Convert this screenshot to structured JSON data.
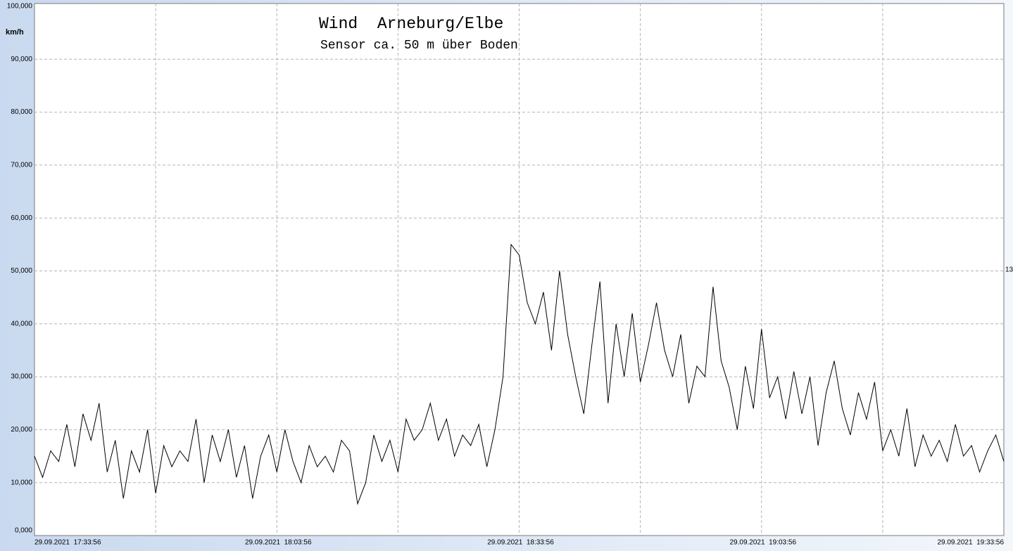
{
  "chart_data": {
    "type": "line",
    "title": "Wind  Arneburg/Elbe",
    "subtitle": "Sensor ca. 50 m über Boden",
    "ylabel": "km/h",
    "annotations": [
      "13"
    ],
    "color": "#000000",
    "grid": true,
    "ylim": [
      0,
      100
    ],
    "yticks": [
      {
        "value": 0,
        "label": "0,000"
      },
      {
        "value": 10,
        "label": "10,000"
      },
      {
        "value": 20,
        "label": "20,000"
      },
      {
        "value": 30,
        "label": "30,000"
      },
      {
        "value": 40,
        "label": "40,000"
      },
      {
        "value": 50,
        "label": "50,000"
      },
      {
        "value": 60,
        "label": "60,000"
      },
      {
        "value": 70,
        "label": "70,000"
      },
      {
        "value": 80,
        "label": "80,000"
      },
      {
        "value": 90,
        "label": "90,000"
      },
      {
        "value": 100,
        "label": "100,000"
      }
    ],
    "xlim": [
      "29.09.2021  17:33:56",
      "29.09.2021  19:33:56"
    ],
    "xticks": [
      "29.09.2021  17:33:56",
      "29.09.2021  18:03:56",
      "29.09.2021  18:33:56",
      "29.09.2021  19:03:56",
      "29.09.2021  19:33:56"
    ],
    "values": [
      15,
      11,
      16,
      14,
      21,
      13,
      23,
      18,
      25,
      12,
      18,
      7,
      16,
      12,
      20,
      8,
      17,
      13,
      16,
      14,
      22,
      10,
      19,
      14,
      20,
      11,
      17,
      7,
      15,
      19,
      12,
      20,
      14,
      10,
      17,
      13,
      15,
      12,
      18,
      16,
      6,
      10,
      19,
      14,
      18,
      12,
      22,
      18,
      20,
      25,
      18,
      22,
      15,
      19,
      17,
      21,
      13,
      20,
      30,
      55,
      53,
      44,
      40,
      46,
      35,
      50,
      38,
      30,
      23,
      36,
      48,
      25,
      40,
      30,
      42,
      29,
      36,
      44,
      35,
      30,
      38,
      25,
      32,
      30,
      47,
      33,
      28,
      20,
      32,
      24,
      39,
      26,
      30,
      22,
      31,
      23,
      30,
      17,
      27,
      33,
      24,
      19,
      27,
      22,
      29,
      16,
      20,
      15,
      24,
      13,
      19,
      15,
      18,
      14,
      21,
      15,
      17,
      12,
      16,
      19,
      14
    ]
  }
}
